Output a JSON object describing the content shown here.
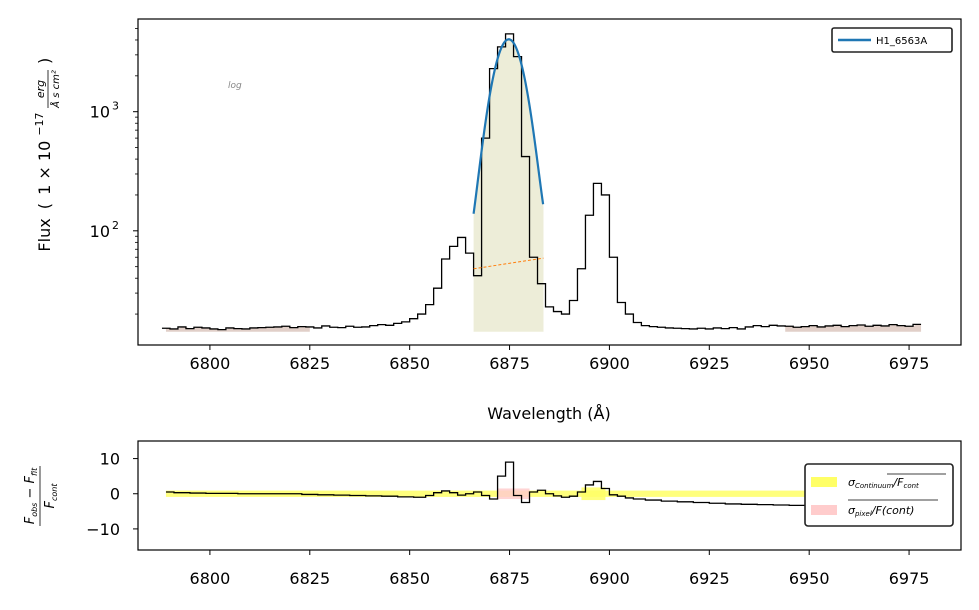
{
  "chart_data": [
    {
      "type": "line",
      "title": "",
      "xlabel": "Wavelength (Å)",
      "ylabel": "Flux ( 1 × 10^−17 erg / Å s cm² )",
      "ylabel_parts": {
        "prefix": "Flux",
        "scale_base": "1 × 10",
        "scale_exp": "−17",
        "unit_num": "erg",
        "unit_den": "Å s cm²"
      },
      "annotation": "log",
      "xlim": [
        6782,
        6988
      ],
      "ylim": [
        11,
        6000
      ],
      "yscale": "log",
      "xticks": [
        6800,
        6825,
        6850,
        6875,
        6900,
        6925,
        6950,
        6975
      ],
      "xtick_labels": [
        "6800",
        "6825",
        "6850",
        "6875",
        "6900",
        "6925",
        "6950",
        "6975"
      ],
      "yticks": [
        {
          "value": 100,
          "base": "10",
          "exp": "2"
        },
        {
          "value": 1000,
          "base": "10",
          "exp": "3"
        }
      ],
      "legend": {
        "position": "top-right",
        "entries": [
          "H1_6563A"
        ]
      },
      "series": [
        {
          "kind": "step",
          "color": "#000000",
          "x": [
            6789,
            6791,
            6793,
            6795,
            6797,
            6799,
            6801,
            6803,
            6805,
            6807,
            6809,
            6811,
            6813,
            6815,
            6817,
            6819,
            6821,
            6823,
            6825,
            6827,
            6829,
            6831,
            6833,
            6835,
            6837,
            6839,
            6841,
            6843,
            6845,
            6847,
            6849,
            6851,
            6853,
            6855,
            6857,
            6859,
            6861,
            6863,
            6865,
            6867,
            6869,
            6871,
            6873,
            6875,
            6877,
            6879,
            6881,
            6883,
            6885,
            6887,
            6889,
            6891,
            6893,
            6895,
            6897,
            6899,
            6901,
            6903,
            6905,
            6907,
            6909,
            6911,
            6913,
            6915,
            6917,
            6919,
            6921,
            6923,
            6925,
            6927,
            6929,
            6931,
            6933,
            6935,
            6937,
            6939,
            6941,
            6943,
            6945,
            6947,
            6949,
            6951,
            6953,
            6955,
            6957,
            6959,
            6961,
            6963,
            6965,
            6967,
            6969,
            6971,
            6973,
            6975,
            6977
          ],
          "y": [
            15.2,
            15.0,
            15.6,
            15.1,
            15.5,
            15.3,
            15.0,
            14.8,
            15.3,
            15.1,
            15.0,
            15.3,
            15.4,
            15.5,
            15.6,
            15.8,
            15.4,
            15.7,
            15.6,
            15.3,
            15.9,
            15.5,
            15.4,
            15.8,
            15.5,
            15.6,
            16.0,
            16.3,
            16.1,
            16.7,
            17.2,
            18.3,
            20.0,
            24.0,
            33.0,
            58.0,
            74.0,
            88.0,
            65.0,
            42.0,
            600,
            2300,
            3500,
            4500,
            2900,
            420,
            60,
            36,
            23,
            21,
            20,
            26,
            48,
            135,
            250,
            200,
            60,
            25,
            20,
            17,
            16,
            15.7,
            15.5,
            15.3,
            15.2,
            15.1,
            15.0,
            15.2,
            15.0,
            15.3,
            15.1,
            15.4,
            15.0,
            15.6,
            16.0,
            15.7,
            16.1,
            15.9,
            15.8,
            15.5,
            15.7,
            16.0,
            15.6,
            15.9,
            16.1,
            15.7,
            16.0,
            16.2,
            15.8,
            16.1,
            15.9,
            16.3,
            16.0,
            15.8,
            16.4
          ]
        },
        {
          "kind": "fit",
          "name": "H1_6563A",
          "color": "#1f77b4",
          "center": 6874.8,
          "sigma": 3.2,
          "amplitude": 4000,
          "x_range": [
            6866,
            6883.5
          ],
          "continuum": {
            "x": [
              6866,
              6883.5
            ],
            "y": [
              48,
              59
            ],
            "color": "#ff7f0e"
          }
        }
      ],
      "shaded": [
        {
          "x": [
            6866,
            6883.5
          ],
          "color": "#d8d8a8"
        },
        {
          "x": [
            6789,
            6825
          ],
          "color": "#c8a89a"
        },
        {
          "x": [
            6944,
            6978
          ],
          "color": "#c8a89a"
        }
      ]
    },
    {
      "type": "line",
      "title": "",
      "xlabel": "",
      "ylabel": "(F_obs − F_fit) / F_cont",
      "ylabel_parts": {
        "top": "F",
        "top_sub1": "obs",
        "top_mid": " − F",
        "top_sub2": "fit",
        "bottom": "F",
        "bottom_sub": "cont"
      },
      "xlim": [
        6782,
        6988
      ],
      "ylim": [
        -16,
        15
      ],
      "xticks": [
        6800,
        6825,
        6850,
        6875,
        6900,
        6925,
        6950,
        6975
      ],
      "xtick_labels": [
        "6800",
        "6825",
        "6850",
        "6875",
        "6900",
        "6925",
        "6950",
        "6975"
      ],
      "yticks": [
        10,
        0,
        -10
      ],
      "ytick_labels": [
        "10",
        "0",
        "−10"
      ],
      "legend": {
        "position": "right",
        "entries": [
          {
            "label": "σ_Continuum / F_cont",
            "base": "σ",
            "sub": "Continuum",
            "tail_base": "F",
            "tail_sub": "cont",
            "color": "#ffff66"
          },
          {
            "label": "σ_pixel / F(cont)",
            "base": "σ",
            "sub": "pixel",
            "tail_text": "F(cont)",
            "color": "#ffcccc"
          }
        ]
      },
      "series": [
        {
          "kind": "step",
          "color": "#000000",
          "x": [
            6789,
            6793,
            6797,
            6801,
            6805,
            6809,
            6813,
            6817,
            6821,
            6825,
            6829,
            6833,
            6837,
            6841,
            6845,
            6849,
            6853,
            6855,
            6857,
            6859,
            6861,
            6863,
            6865,
            6867,
            6869,
            6871,
            6873,
            6875,
            6877,
            6879,
            6881,
            6883,
            6885,
            6887,
            6889,
            6891,
            6893,
            6895,
            6897,
            6899,
            6901,
            6903,
            6905,
            6907,
            6911,
            6915,
            6919,
            6923,
            6927,
            6931,
            6935,
            6939,
            6943,
            6947,
            6951,
            6955,
            6959,
            6963,
            6967,
            6971,
            6975,
            6977
          ],
          "y": [
            0.5,
            0.3,
            0.2,
            0.1,
            0.1,
            0.0,
            0.0,
            0.0,
            0.0,
            -0.2,
            -0.3,
            -0.4,
            -0.5,
            -0.6,
            -0.7,
            -0.9,
            -1.0,
            -0.5,
            0.3,
            0.8,
            0.3,
            -0.4,
            0.0,
            0.5,
            -0.5,
            -1.5,
            5.0,
            9.0,
            -0.5,
            -2.5,
            0.5,
            1.0,
            0.0,
            -0.6,
            -1.0,
            -0.7,
            0.5,
            2.5,
            3.5,
            1.5,
            -0.3,
            -0.7,
            -1.2,
            -1.5,
            -1.8,
            -2.1,
            -2.3,
            -2.5,
            -2.7,
            -2.9,
            -3.0,
            -3.1,
            -3.2,
            -3.3,
            -3.3,
            -3.3,
            -3.2,
            -3.1,
            -3.0,
            -2.9,
            -2.8,
            -2.7
          ]
        }
      ],
      "bands": [
        {
          "kind": "continuum",
          "x": [
            6789,
            6978
          ],
          "half_width": 0.9,
          "color": "#ffff66"
        },
        {
          "kind": "pixel",
          "x": [
            6872,
            6880
          ],
          "half_width": 1.5,
          "color": "#ffcccc"
        },
        {
          "kind": "continuum_bump",
          "x": [
            6893,
            6899
          ],
          "half_width": 1.8,
          "color": "#ffff66"
        }
      ]
    }
  ]
}
